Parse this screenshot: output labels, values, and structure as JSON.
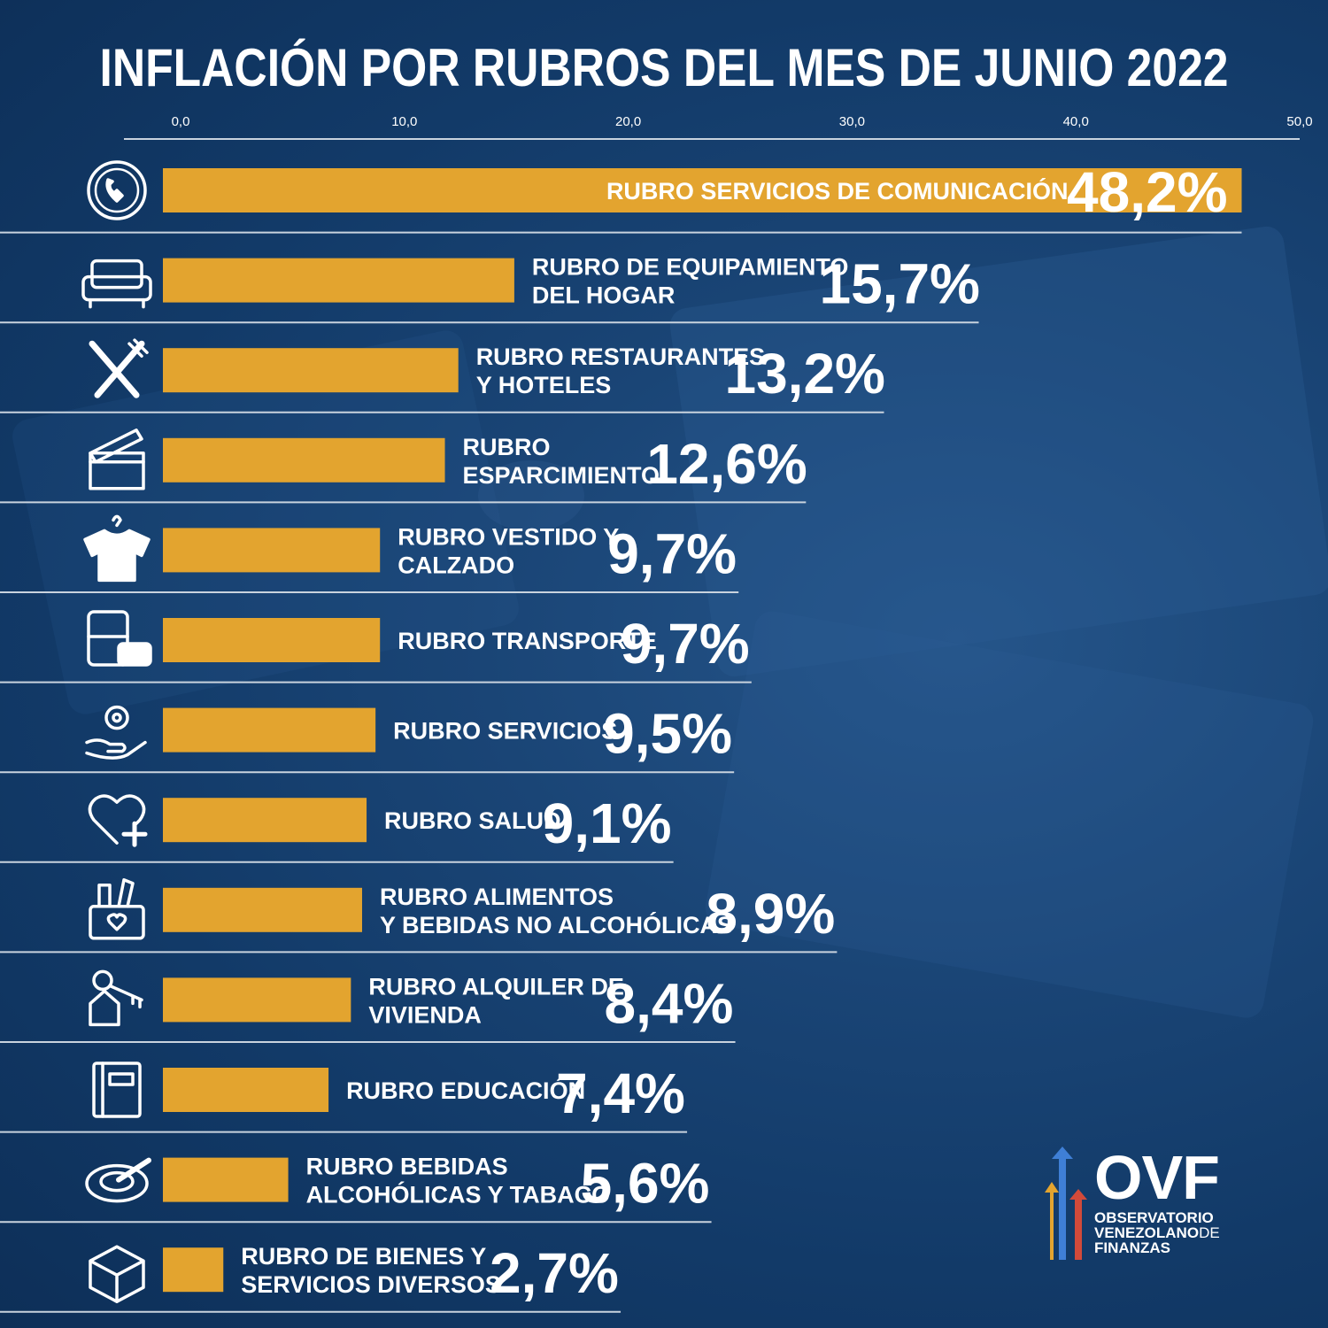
{
  "title": "INFLACIÓN POR RUBROS DEL MES DE JUNIO 2022",
  "colors": {
    "bar": "#e3a42f",
    "background": "#123a68",
    "text": "#ffffff",
    "separator": "#c9d3de"
  },
  "chart_data": {
    "type": "bar",
    "orientation": "horizontal",
    "xlim": [
      0,
      50
    ],
    "ticks": [
      "0,0",
      "10,0",
      "20,0",
      "30,0",
      "40,0",
      "50,0"
    ],
    "tick_values": [
      0,
      10,
      20,
      30,
      40,
      50
    ],
    "series": [
      {
        "values": [
          48.2,
          15.7,
          13.2,
          12.6,
          9.7,
          9.7,
          9.5,
          9.1,
          8.9,
          8.4,
          7.4,
          5.6,
          2.7
        ]
      }
    ],
    "categories": [
      "RUBRO SERVICIOS DE COMUNICACIÓN",
      "RUBRO DE EQUIPAMIENTO DEL HOGAR",
      "RUBRO RESTAURANTES Y HOTELES",
      "RUBRO ESPARCIMIENTO",
      "RUBRO VESTIDO Y CALZADO",
      "RUBRO TRANSPORTE",
      "RUBRO SERVICIOS",
      "RUBRO SALUD",
      "RUBRO ALIMENTOS Y BEBIDAS NO ALCOHÓLICAS",
      "RUBRO ALQUILER DE VIVIENDA",
      "RUBRO EDUCACIÓN",
      "RUBRO BEBIDAS ALCOHÓLICAS Y TABACO",
      "RUBRO DE BIENES Y SERVICIOS DIVERSOS"
    ],
    "rows": [
      {
        "label_lines": [
          "RUBRO SERVICIOS DE COMUNICACIÓN"
        ],
        "value_text": "48,2%",
        "icon": "phone-icon"
      },
      {
        "label_lines": [
          "RUBRO DE EQUIPAMIENTO",
          "DEL HOGAR"
        ],
        "value_text": "15,7%",
        "icon": "sofa-icon"
      },
      {
        "label_lines": [
          "RUBRO RESTAURANTES",
          "Y HOTELES"
        ],
        "value_text": "13,2%",
        "icon": "fork-knife-icon"
      },
      {
        "label_lines": [
          "RUBRO",
          "ESPARCIMIENTO"
        ],
        "value_text": "12,6%",
        "icon": "clapperboard-icon"
      },
      {
        "label_lines": [
          "RUBRO VESTIDO Y",
          "CALZADO"
        ],
        "value_text": "9,7%",
        "icon": "shirt-icon"
      },
      {
        "label_lines": [
          "RUBRO TRANSPORTE"
        ],
        "value_text": "9,7%",
        "icon": "bus-car-icon"
      },
      {
        "label_lines": [
          "RUBRO SERVICIOS"
        ],
        "value_text": "9,5%",
        "icon": "gear-hand-icon"
      },
      {
        "label_lines": [
          "RUBRO SALUD"
        ],
        "value_text": "9,1%",
        "icon": "heart-plus-icon"
      },
      {
        "label_lines": [
          "RUBRO ALIMENTOS",
          "Y BEBIDAS NO ALCOHÓLICAS"
        ],
        "value_text": "8,9%",
        "icon": "grocery-basket-icon"
      },
      {
        "label_lines": [
          "RUBRO ALQUILER DE",
          "VIVIENDA"
        ],
        "value_text": "8,4%",
        "icon": "house-key-icon"
      },
      {
        "label_lines": [
          "RUBRO EDUCACIÓN"
        ],
        "value_text": "7,4%",
        "icon": "book-icon"
      },
      {
        "label_lines": [
          "RUBRO BEBIDAS",
          "ALCOHÓLICAS Y TABACO"
        ],
        "value_text": "5,6%",
        "icon": "ashtray-icon"
      },
      {
        "label_lines": [
          "RUBRO DE BIENES Y",
          "SERVICIOS DIVERSOS"
        ],
        "value_text": "2,7%",
        "icon": "box-icon"
      }
    ]
  },
  "logo": {
    "acronym": "OVF",
    "lines": [
      "OBSERVATORIO",
      "VENEZOLANO",
      "DE",
      "FINANZAS"
    ]
  }
}
